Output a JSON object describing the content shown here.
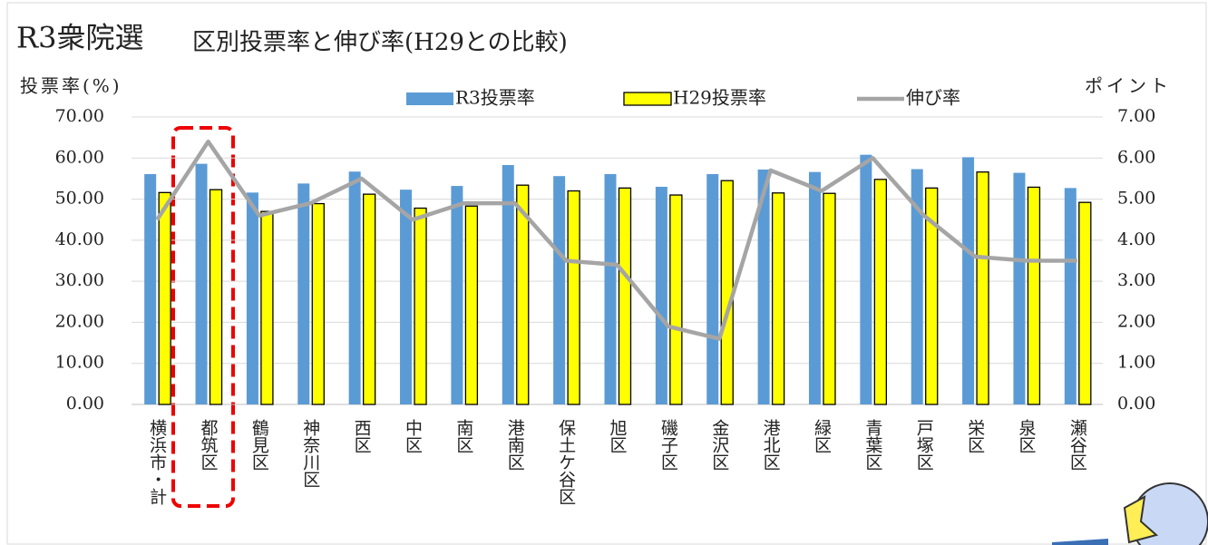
{
  "chart_data": {
    "type": "bar-line",
    "title": "R3衆院選",
    "subtitle": "区別投票率と伸び率(H29との比較)",
    "y_label": "投票率(%)",
    "y2_label": "ポイント",
    "categories": [
      "横浜市・計",
      "都筑区",
      "鶴見区",
      "神奈川区",
      "西区",
      "中区",
      "南区",
      "港南区",
      "保土ケ谷区",
      "旭区",
      "磯子区",
      "金沢区",
      "港北区",
      "緑区",
      "青葉区",
      "戸塚区",
      "栄区",
      "泉区",
      "瀬谷区"
    ],
    "series": [
      {
        "name": "R3投票率",
        "color": "#5b9bd5",
        "kind": "bar",
        "values": [
          56.1,
          58.6,
          51.6,
          53.8,
          56.7,
          52.3,
          53.2,
          58.3,
          55.6,
          56.1,
          53.0,
          56.1,
          57.2,
          56.6,
          60.8,
          57.3,
          60.2,
          56.4,
          52.7
        ]
      },
      {
        "name": "H29投票率",
        "color": "#ffff00",
        "kind": "bar",
        "values": [
          51.6,
          52.3,
          47.0,
          48.9,
          51.2,
          47.8,
          48.3,
          53.4,
          52.0,
          52.7,
          51.0,
          54.5,
          51.5,
          51.4,
          54.8,
          52.7,
          56.6,
          52.9,
          49.2
        ]
      },
      {
        "name": "伸び率",
        "color": "#a5a5a5",
        "kind": "line",
        "axis": "y2",
        "values": [
          4.5,
          6.4,
          4.6,
          4.9,
          5.5,
          4.5,
          4.9,
          4.9,
          3.5,
          3.4,
          1.9,
          1.6,
          5.7,
          5.2,
          6.0,
          4.6,
          3.6,
          3.5,
          3.5
        ]
      }
    ],
    "ylim": [
      0,
      70
    ],
    "yticks": [
      {
        "value": 0,
        "label": "0.00"
      },
      {
        "value": 10,
        "label": "10.00"
      },
      {
        "value": 20,
        "label": "20.00"
      },
      {
        "value": 30,
        "label": "30.00"
      },
      {
        "value": 40,
        "label": "40.00"
      },
      {
        "value": 50,
        "label": "50.00"
      },
      {
        "value": 60,
        "label": "60.00"
      },
      {
        "value": 70,
        "label": "70.00"
      }
    ],
    "y2lim": [
      0,
      7
    ],
    "y2ticks": [
      {
        "value": 0,
        "label": "0.00"
      },
      {
        "value": 1,
        "label": "1.00"
      },
      {
        "value": 2,
        "label": "2.00"
      },
      {
        "value": 3,
        "label": "3.00"
      },
      {
        "value": 4,
        "label": "4.00"
      },
      {
        "value": 5,
        "label": "5.00"
      },
      {
        "value": 6,
        "label": "6.00"
      },
      {
        "value": 7,
        "label": "7.00"
      }
    ],
    "grid": true
  }
}
